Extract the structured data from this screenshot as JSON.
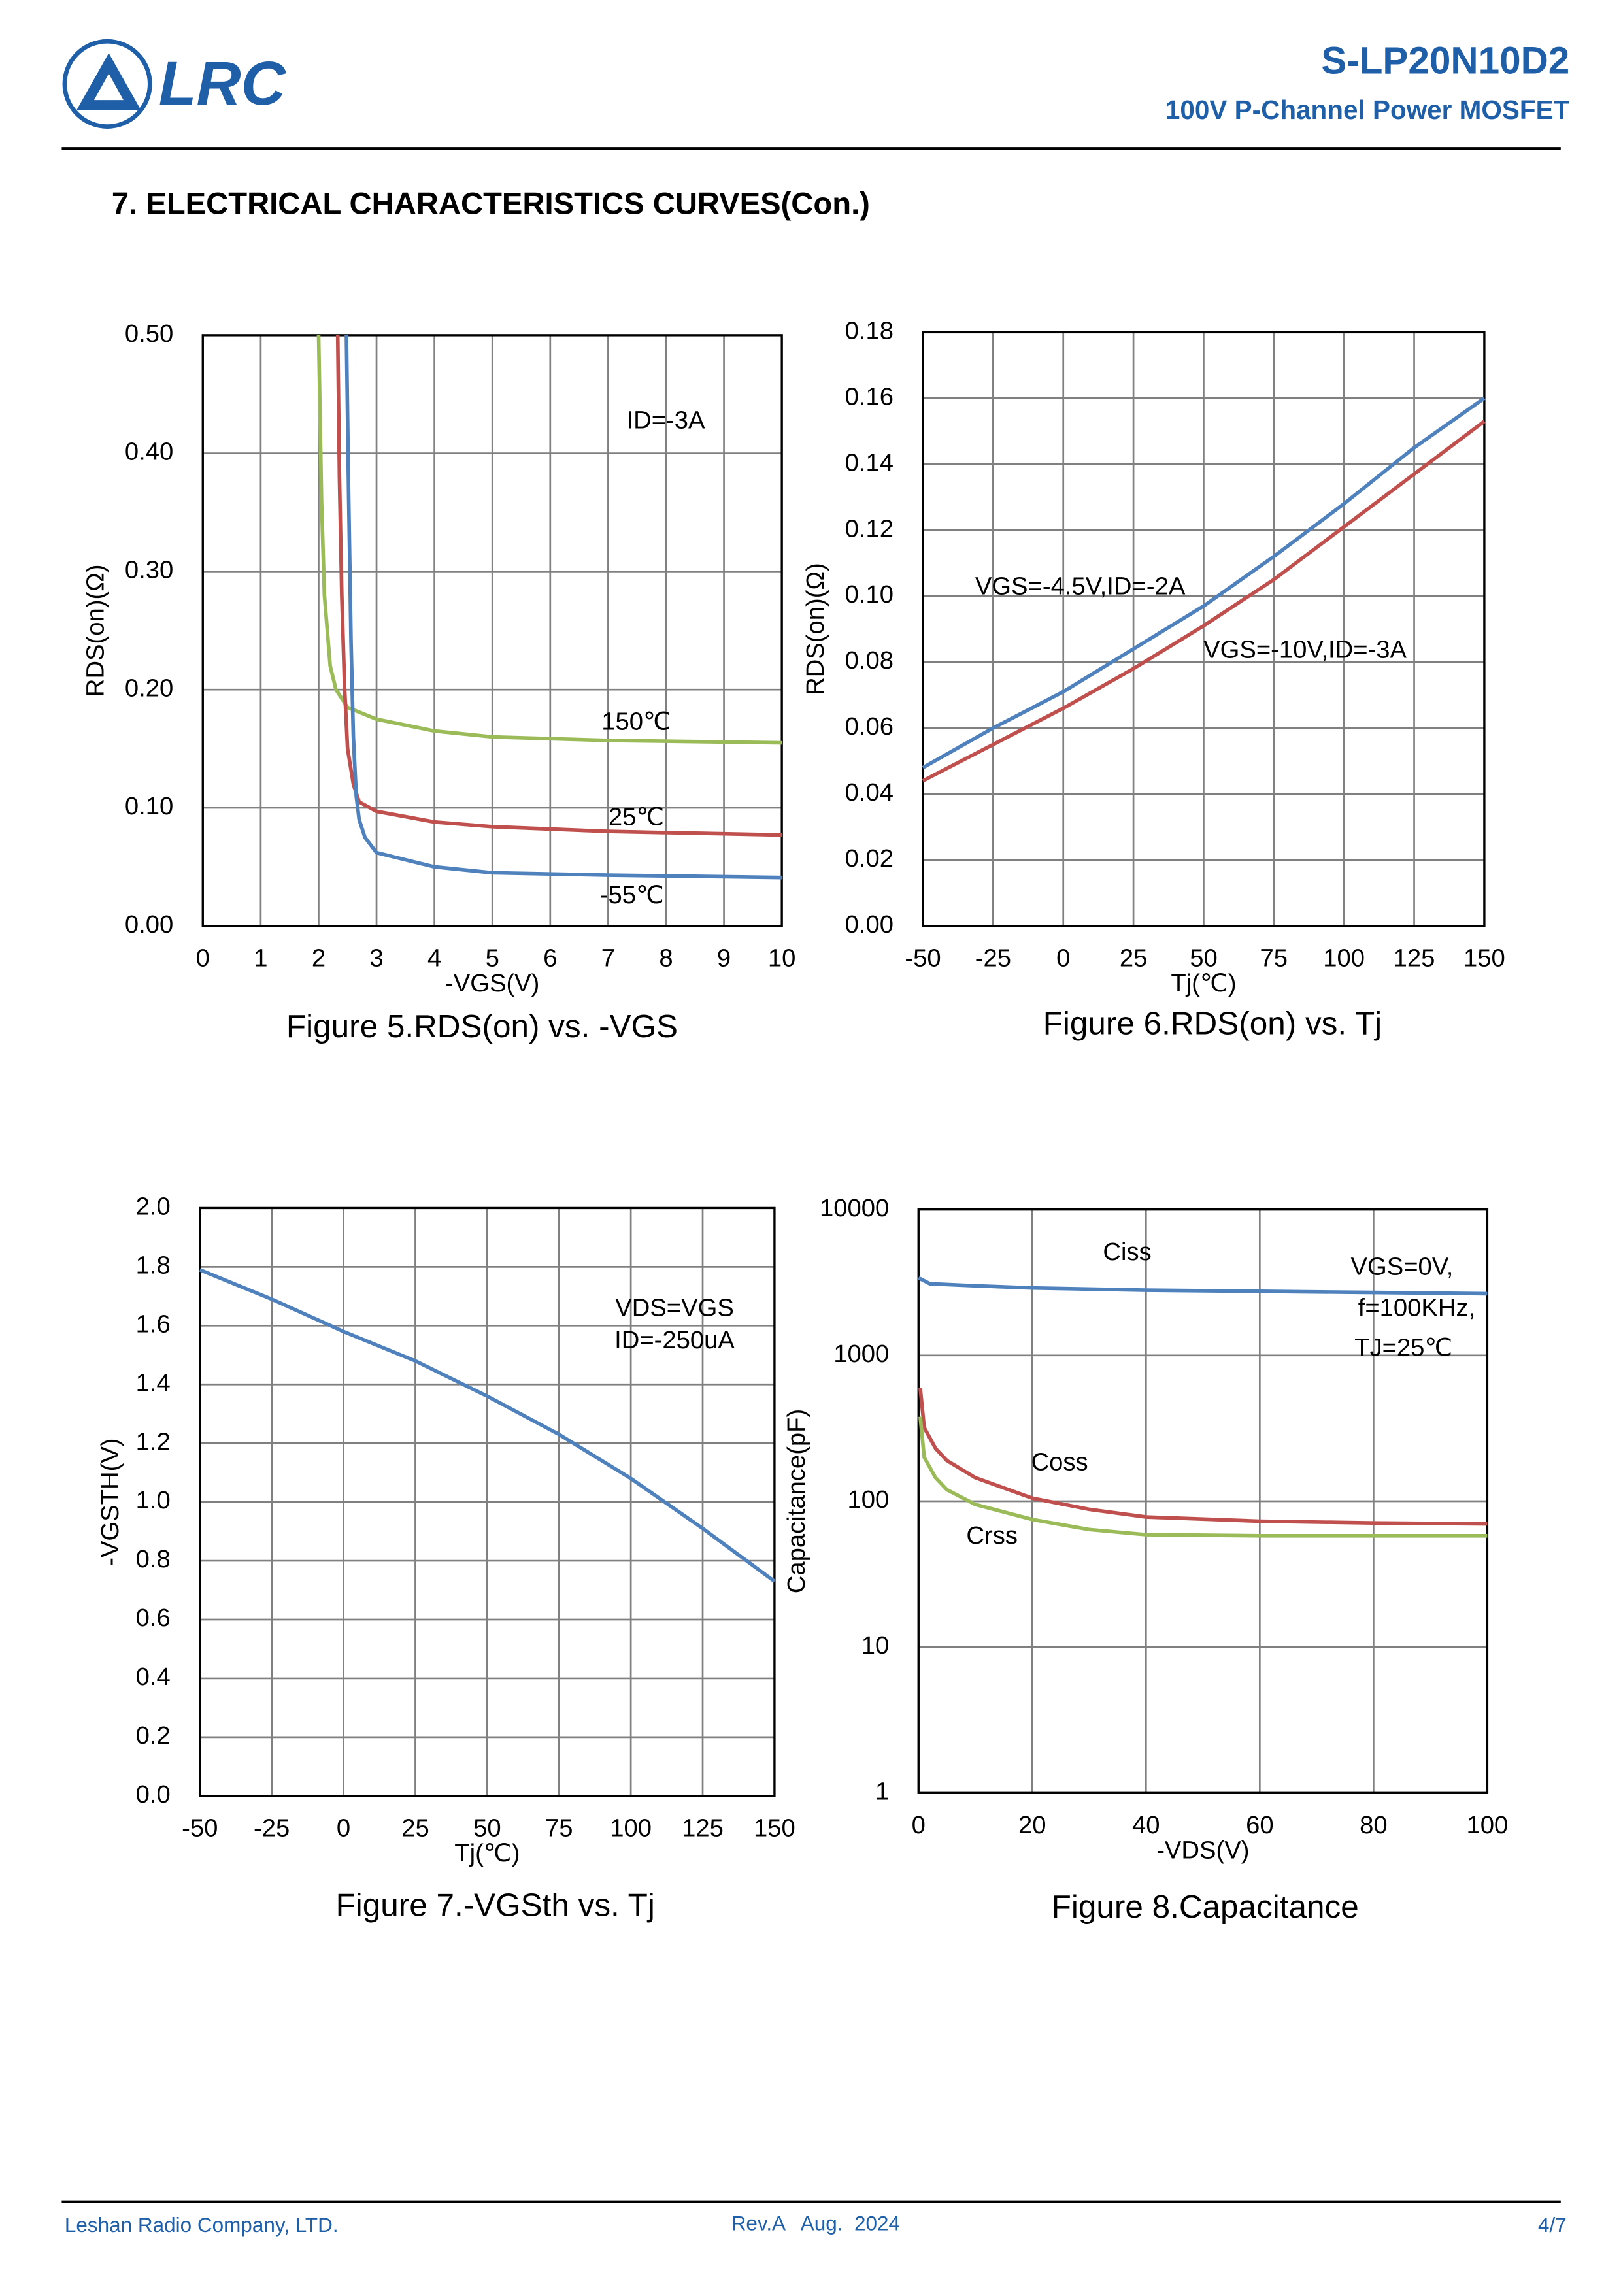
{
  "header": {
    "logo": "LRC",
    "part_number": "S-LP20N10D2",
    "subtitle": "100V P-Channel Power MOSFET"
  },
  "section_title": "7. ELECTRICAL CHARACTERISTICS CURVES(Con.)",
  "chart_data": [
    {
      "type": "line",
      "title": "Figure 5.RDS(on) vs. -VGS",
      "xlabel": "-VGS(V)",
      "ylabel": "RDS(on)(Ω)",
      "grid": true,
      "xlim": [
        0,
        10
      ],
      "ylim": [
        0,
        0.5
      ],
      "xticks": [
        0,
        1,
        2,
        3,
        4,
        5,
        6,
        7,
        8,
        9,
        10
      ],
      "yticks": [
        {
          "value": 0,
          "label": "0.00"
        },
        {
          "value": 0.1,
          "label": "0.10"
        },
        {
          "value": 0.2,
          "label": "0.20"
        },
        {
          "value": 0.3,
          "label": "0.30"
        },
        {
          "value": 0.4,
          "label": "0.40"
        },
        {
          "value": 0.5,
          "label": "0.50"
        }
      ],
      "annotations": [
        "ID=-3A"
      ],
      "series": [
        {
          "name": "150℃",
          "color": "#9bbb59",
          "x": [
            2.0,
            2.05,
            2.1,
            2.2,
            2.3,
            2.5,
            3,
            4,
            5,
            7,
            10
          ],
          "values": [
            0.5,
            0.36,
            0.28,
            0.22,
            0.2,
            0.185,
            0.175,
            0.165,
            0.16,
            0.157,
            0.155
          ]
        },
        {
          "name": "25℃",
          "color": "#c0504d",
          "x": [
            2.33,
            2.36,
            2.4,
            2.45,
            2.5,
            2.6,
            2.7,
            3,
            4,
            5,
            7,
            10
          ],
          "values": [
            0.5,
            0.38,
            0.28,
            0.2,
            0.15,
            0.12,
            0.105,
            0.097,
            0.088,
            0.084,
            0.08,
            0.077
          ]
        },
        {
          "name": "-55℃",
          "color": "#4f81bd",
          "x": [
            2.48,
            2.52,
            2.56,
            2.6,
            2.65,
            2.7,
            2.8,
            3,
            4,
            5,
            7,
            10
          ],
          "values": [
            0.5,
            0.36,
            0.24,
            0.16,
            0.11,
            0.09,
            0.075,
            0.062,
            0.05,
            0.045,
            0.043,
            0.041
          ]
        }
      ]
    },
    {
      "type": "line",
      "title": "Figure 6.RDS(on) vs. Tj",
      "xlabel": "Tj(℃)",
      "ylabel": "RDS(on)(Ω)",
      "grid": true,
      "xlim": [
        -50,
        150
      ],
      "ylim": [
        0,
        0.18
      ],
      "xticks": [
        -50,
        -25,
        0,
        25,
        50,
        75,
        100,
        125,
        150
      ],
      "yticks": [
        {
          "value": 0,
          "label": "0.00"
        },
        {
          "value": 0.02,
          "label": "0.02"
        },
        {
          "value": 0.04,
          "label": "0.04"
        },
        {
          "value": 0.06,
          "label": "0.06"
        },
        {
          "value": 0.08,
          "label": "0.08"
        },
        {
          "value": 0.1,
          "label": "0.10"
        },
        {
          "value": 0.12,
          "label": "0.12"
        },
        {
          "value": 0.14,
          "label": "0.14"
        },
        {
          "value": 0.16,
          "label": "0.16"
        },
        {
          "value": 0.18,
          "label": "0.18"
        }
      ],
      "series": [
        {
          "name": "VGS=-4.5V,ID=-2A",
          "color": "#4f81bd",
          "x": [
            -50,
            -25,
            0,
            25,
            50,
            75,
            100,
            125,
            150
          ],
          "values": [
            0.048,
            0.06,
            0.071,
            0.084,
            0.097,
            0.112,
            0.128,
            0.145,
            0.16
          ]
        },
        {
          "name": "VGS=-10V,ID=-3A",
          "color": "#c0504d",
          "x": [
            -50,
            -25,
            0,
            25,
            50,
            75,
            100,
            125,
            150
          ],
          "values": [
            0.044,
            0.055,
            0.066,
            0.078,
            0.091,
            0.105,
            0.121,
            0.137,
            0.153
          ]
        }
      ]
    },
    {
      "type": "line",
      "title": "Figure 7.-VGSth vs. Tj",
      "xlabel": "Tj(℃)",
      "ylabel": "-VGSTH(V)",
      "grid": true,
      "xlim": [
        -50,
        150
      ],
      "ylim": [
        0,
        2.0
      ],
      "xticks": [
        -50,
        -25,
        0,
        25,
        50,
        75,
        100,
        125,
        150
      ],
      "yticks": [
        {
          "value": 0,
          "label": "0.0"
        },
        0.2,
        0.4,
        0.6,
        0.8,
        {
          "value": 1,
          "label": "1.0"
        },
        1.2,
        1.4,
        1.6,
        1.8,
        {
          "value": 2,
          "label": "2.0"
        }
      ],
      "annotations": [
        "VDS=VGS",
        "ID=-250uA"
      ],
      "x": [
        -50,
        -25,
        0,
        25,
        50,
        75,
        100,
        125,
        150
      ],
      "values": [
        1.79,
        1.69,
        1.58,
        1.48,
        1.36,
        1.23,
        1.08,
        0.91,
        0.73
      ],
      "color": "#4f81bd"
    },
    {
      "type": "line",
      "title": "Figure 8.Capacitance",
      "xlabel": "-VDS(V)",
      "ylabel": "Capacitance(pF)",
      "grid": true,
      "yscale": "log",
      "xlim": [
        0,
        100
      ],
      "ylim": [
        1,
        10000
      ],
      "xticks": [
        0,
        20,
        40,
        60,
        80,
        100
      ],
      "yticks": [
        1,
        10,
        100,
        1000,
        10000
      ],
      "annotations": [
        "VGS=0V,",
        "f=100KHz,",
        "TJ=25℃"
      ],
      "series": [
        {
          "name": "Ciss",
          "color": "#4f81bd",
          "x": [
            0,
            2,
            10,
            20,
            40,
            60,
            80,
            100
          ],
          "values": [
            3400,
            3100,
            3000,
            2900,
            2800,
            2750,
            2700,
            2650
          ]
        },
        {
          "name": "Coss",
          "color": "#c0504d",
          "x": [
            0.3,
            1,
            3,
            5,
            10,
            20,
            30,
            40,
            60,
            80,
            100
          ],
          "values": [
            600,
            320,
            230,
            190,
            145,
            105,
            88,
            78,
            73,
            71,
            70
          ]
        },
        {
          "name": "Crss",
          "color": "#9bbb59",
          "x": [
            0.3,
            1,
            3,
            5,
            10,
            20,
            30,
            40,
            60,
            100
          ],
          "values": [
            380,
            200,
            145,
            120,
            95,
            75,
            64,
            59,
            58,
            58
          ]
        }
      ]
    }
  ],
  "footer": {
    "company": "Leshan Radio Company, LTD.",
    "revision": "Rev.A   Aug.  2024",
    "page": "4/7"
  }
}
